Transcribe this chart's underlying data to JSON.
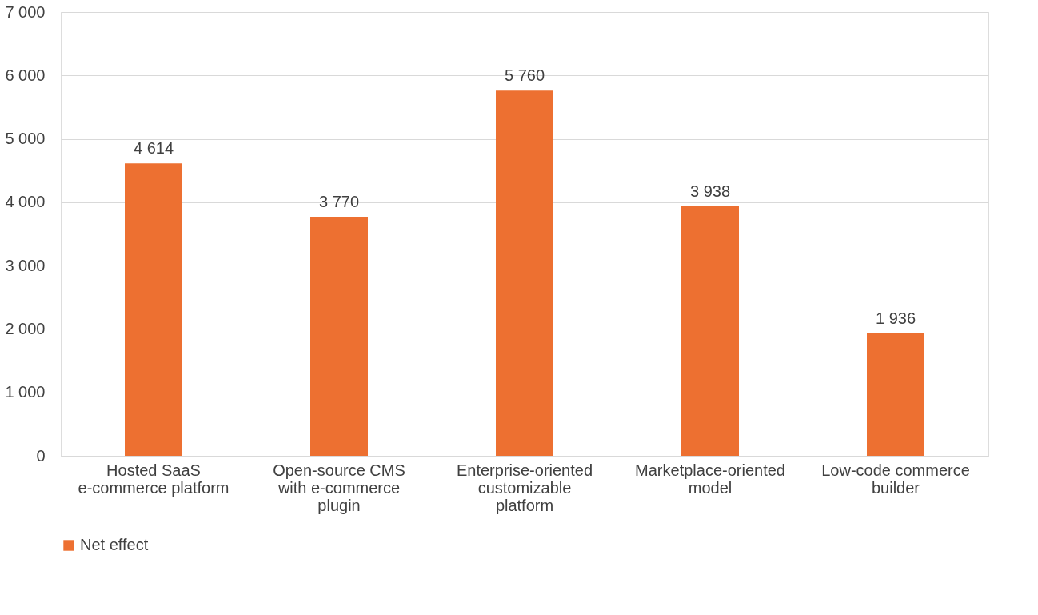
{
  "chart_data": {
    "type": "bar",
    "categories": [
      "Hosted SaaS e-commerce platform",
      "Open-source CMS with e-commerce plugin",
      "Enterprise-oriented customizable platform",
      "Marketplace-oriented model",
      "Low-code commerce builder"
    ],
    "series": [
      {
        "name": "Net effect",
        "color": "#ed7031",
        "values": [
          4614,
          3770,
          5760,
          3938,
          1936
        ]
      }
    ],
    "ylim": [
      0,
      7000
    ],
    "yticks": [
      0,
      1000,
      2000,
      3000,
      4000,
      5000,
      6000,
      7000
    ],
    "grid": "y",
    "legend": "bottom",
    "data_labels": true
  }
}
